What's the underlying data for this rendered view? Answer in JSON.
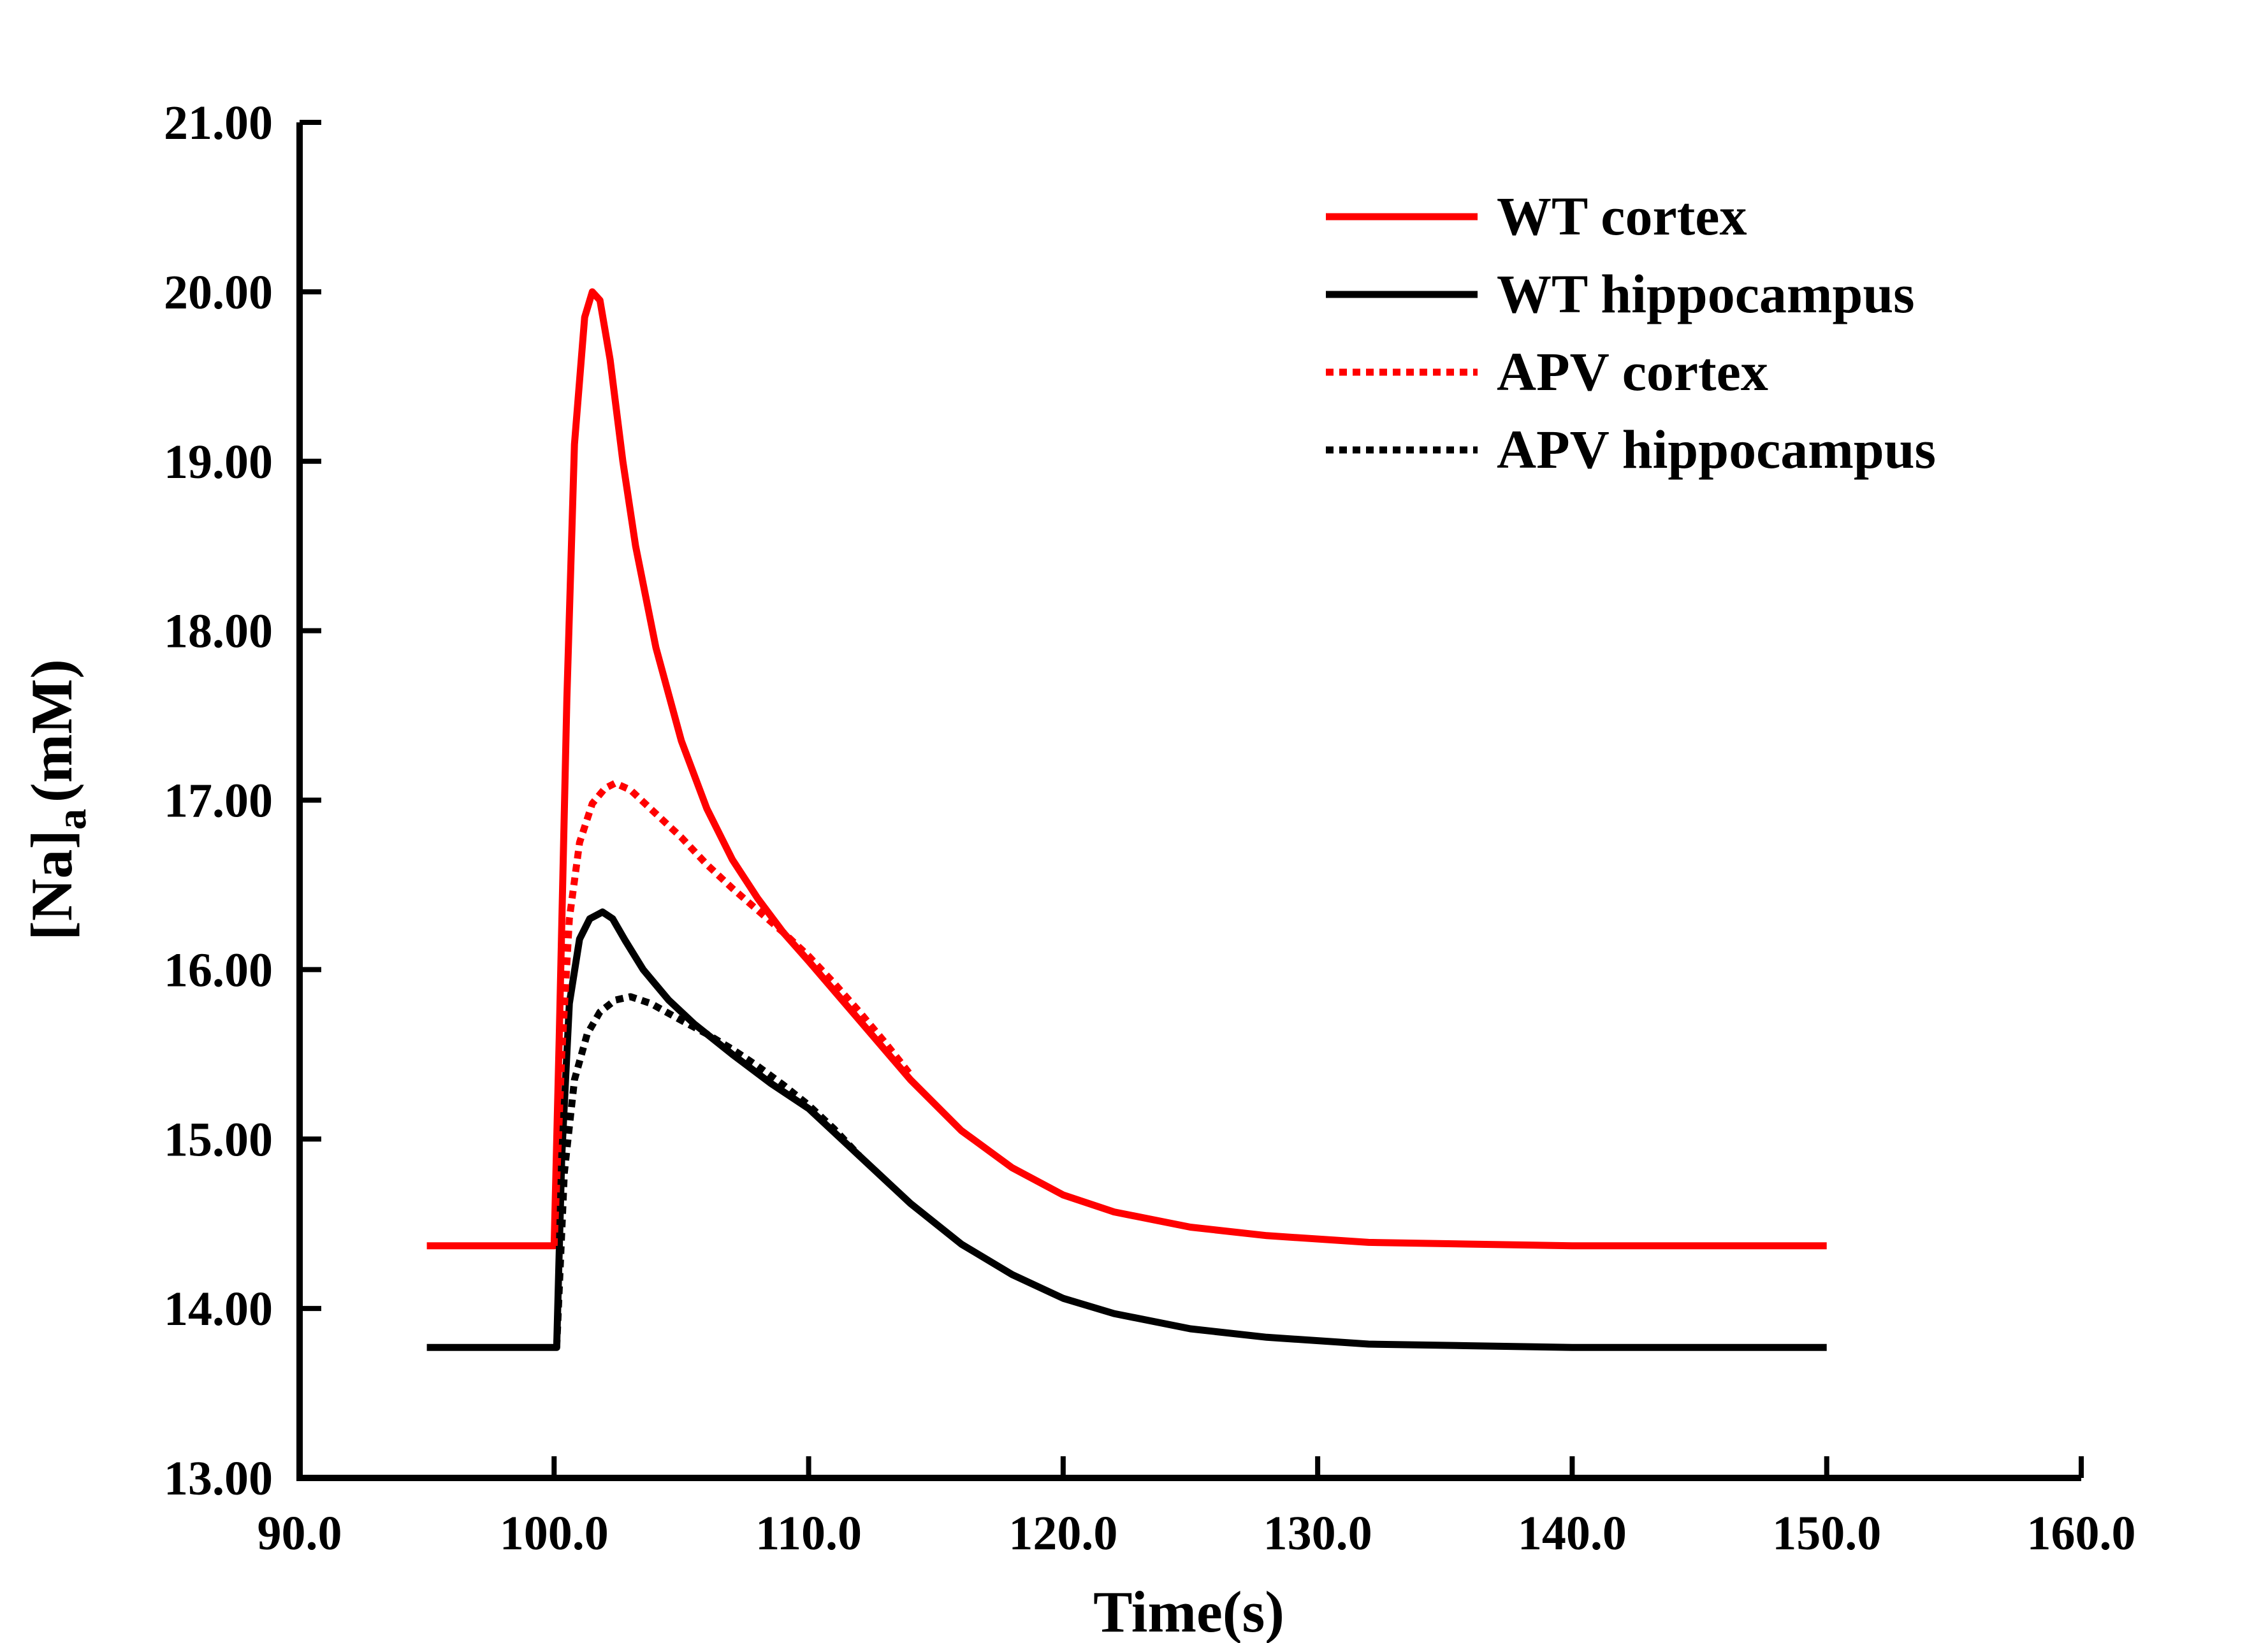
{
  "chart_data": {
    "type": "line",
    "xlabel": "Time(s)",
    "ylabel_main": "[Na]",
    "ylabel_sub": "a",
    "ylabel_unit": "(mM)",
    "xlim": [
      90,
      160
    ],
    "ylim": [
      13,
      21
    ],
    "x_ticks": [
      90,
      100,
      110,
      120,
      130,
      140,
      150,
      160
    ],
    "x_tick_labels": [
      "90.0",
      "100.0",
      "110.0",
      "120.0",
      "130.0",
      "140.0",
      "150.0",
      "160.0"
    ],
    "y_ticks": [
      13,
      14,
      15,
      16,
      17,
      18,
      19,
      20,
      21
    ],
    "y_tick_labels": [
      "13.00",
      "14.00",
      "15.00",
      "16.00",
      "17.00",
      "18.00",
      "19.00",
      "20.00",
      "21.00"
    ],
    "grid": false,
    "legend_position": "top-right",
    "series": [
      {
        "name": "WT cortex",
        "color": "#ff0000",
        "dash": "solid",
        "x": [
          95,
          100,
          100.2,
          100.5,
          100.8,
          101.2,
          101.5,
          101.8,
          102.2,
          102.7,
          103.2,
          104,
          105,
          106,
          107,
          108,
          109,
          110,
          112,
          114,
          116,
          118,
          120,
          122,
          125,
          128,
          132,
          136,
          140,
          145,
          150
        ],
        "y": [
          14.37,
          14.37,
          15.6,
          17.6,
          19.1,
          19.85,
          20.0,
          19.95,
          19.6,
          19.0,
          18.5,
          17.9,
          17.35,
          16.95,
          16.65,
          16.42,
          16.22,
          16.05,
          15.7,
          15.35,
          15.05,
          14.83,
          14.67,
          14.57,
          14.48,
          14.43,
          14.39,
          14.38,
          14.37,
          14.37,
          14.37
        ]
      },
      {
        "name": "WT hippocampus",
        "color": "#000000",
        "dash": "solid",
        "x": [
          95,
          100.1,
          100.3,
          100.6,
          101,
          101.4,
          101.9,
          102.3,
          102.8,
          103.5,
          104.5,
          105.5,
          107,
          108.5,
          110,
          112,
          114,
          116,
          118,
          120,
          122,
          125,
          128,
          132,
          136,
          140,
          145,
          150
        ],
        "y": [
          13.77,
          13.77,
          14.9,
          15.8,
          16.18,
          16.3,
          16.34,
          16.3,
          16.17,
          16.0,
          15.82,
          15.68,
          15.5,
          15.33,
          15.18,
          14.9,
          14.62,
          14.38,
          14.2,
          14.06,
          13.97,
          13.88,
          13.83,
          13.79,
          13.78,
          13.77,
          13.77,
          13.77
        ]
      },
      {
        "name": "APV cortex",
        "color": "#ff0000",
        "dash": "dotted",
        "x": [
          100,
          100.3,
          100.6,
          101,
          101.5,
          102,
          102.4,
          103,
          104,
          105,
          106,
          107,
          108,
          109,
          110,
          111,
          112,
          113,
          114
        ],
        "y": [
          14.37,
          15.5,
          16.3,
          16.75,
          16.98,
          17.07,
          17.1,
          17.06,
          16.92,
          16.78,
          16.62,
          16.48,
          16.35,
          16.22,
          16.08,
          15.92,
          15.75,
          15.57,
          15.38
        ]
      },
      {
        "name": "APV hippocampus",
        "color": "#000000",
        "dash": "dotted",
        "x": [
          100.1,
          100.4,
          100.8,
          101.3,
          101.8,
          102.4,
          103,
          103.8,
          105,
          106,
          107,
          108,
          109,
          110,
          111,
          112
        ],
        "y": [
          13.77,
          14.8,
          15.35,
          15.62,
          15.75,
          15.82,
          15.84,
          15.8,
          15.7,
          15.62,
          15.53,
          15.43,
          15.32,
          15.2,
          15.06,
          14.9
        ]
      }
    ]
  }
}
